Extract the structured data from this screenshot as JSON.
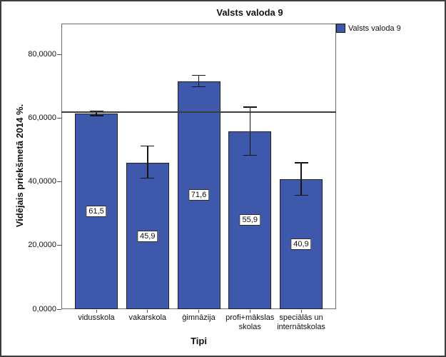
{
  "title": "Valsts valoda 9",
  "legend": {
    "label": "Valsts valoda 9"
  },
  "colors": {
    "bar_fill": "#3e59ac",
    "bar_border": "#202020",
    "reference_line": "#3d3d3d",
    "frame": "#6b6b6b"
  },
  "chart_data": {
    "type": "bar",
    "title": "Valsts valoda 9",
    "xlabel": "Tipi",
    "ylabel": "Vidējais priekšmetā 2014 %.",
    "legend": "Valsts valoda 9",
    "legend_position": "top-right",
    "grid": false,
    "categories": [
      "vidusskola",
      "vakarskola",
      "ģimnāzija",
      "profi+mākslas skolas",
      "speciālās un internātskolas"
    ],
    "values": [
      61.5,
      45.9,
      71.6,
      55.9,
      40.9
    ],
    "value_labels": [
      "61,5",
      "45,9",
      "71,6",
      "55,9",
      "40,9"
    ],
    "error_bars": [
      {
        "low": 60.8,
        "high": 62.2
      },
      {
        "low": 41.2,
        "high": 51.2
      },
      {
        "low": 69.8,
        "high": 73.4
      },
      {
        "low": 48.3,
        "high": 63.5
      },
      {
        "low": 35.8,
        "high": 46.0
      }
    ],
    "y_ticks": [
      {
        "value": 0,
        "label": "0,0000"
      },
      {
        "value": 20,
        "label": "20,0000"
      },
      {
        "value": 40,
        "label": "40,0000"
      },
      {
        "value": 60,
        "label": "60,0000"
      },
      {
        "value": 80,
        "label": "80,0000"
      }
    ],
    "ylim": [
      0,
      89.7
    ],
    "reference_line_value": 62.0
  }
}
